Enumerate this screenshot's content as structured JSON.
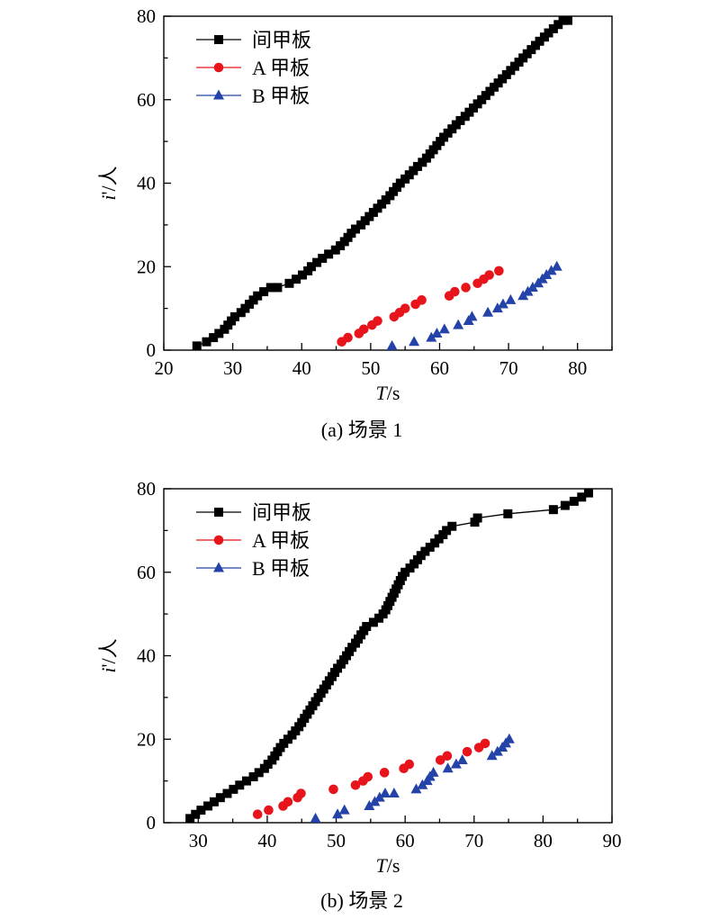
{
  "figure": {
    "caption_a": "(a) 场景 1",
    "caption_b": "(b) 场景 2"
  },
  "colors": {
    "series_mid": "#000000",
    "series_a": "#e8141c",
    "series_b": "#2443a8",
    "axis": "#000000"
  },
  "chart_data": [
    {
      "type": "scatter",
      "title": "",
      "xlabel": "T/s",
      "ylabel": "i'/人",
      "xlim": [
        20,
        85
      ],
      "ylim": [
        0,
        80
      ],
      "xticks": [
        20,
        30,
        40,
        50,
        60,
        70,
        80
      ],
      "yticks": [
        0,
        20,
        40,
        60,
        80
      ],
      "legend_position": "top-left",
      "series": [
        {
          "name": "间甲板",
          "marker": "square",
          "line": true,
          "color": "#000000",
          "points": [
            [
              24.8,
              1
            ],
            [
              26.2,
              2
            ],
            [
              27.2,
              3
            ],
            [
              28,
              4
            ],
            [
              28.8,
              5
            ],
            [
              29.3,
              6
            ],
            [
              29.8,
              7
            ],
            [
              30.3,
              8
            ],
            [
              31.2,
              9
            ],
            [
              31.8,
              10
            ],
            [
              32.4,
              11
            ],
            [
              33,
              12
            ],
            [
              33.6,
              13
            ],
            [
              34.5,
              14
            ],
            [
              35.5,
              15
            ],
            [
              36.5,
              15
            ],
            [
              38.2,
              16
            ],
            [
              39.2,
              17
            ],
            [
              40.1,
              18
            ],
            [
              40.9,
              19
            ],
            [
              41.4,
              20
            ],
            [
              42.2,
              21
            ],
            [
              43,
              22
            ],
            [
              43.9,
              23
            ],
            [
              44.9,
              24
            ],
            [
              45.6,
              25
            ],
            [
              46.2,
              26
            ],
            [
              46.7,
              27
            ],
            [
              47.2,
              28
            ],
            [
              47.8,
              29
            ],
            [
              48.6,
              30
            ],
            [
              49.2,
              31
            ],
            [
              49.8,
              32
            ],
            [
              50.4,
              33
            ],
            [
              51,
              34
            ],
            [
              51.6,
              35
            ],
            [
              52.2,
              36
            ],
            [
              52.8,
              37
            ],
            [
              53.3,
              38
            ],
            [
              53.8,
              39
            ],
            [
              54.3,
              40
            ],
            [
              55,
              41
            ],
            [
              55.6,
              42
            ],
            [
              56.2,
              43
            ],
            [
              56.8,
              44
            ],
            [
              57.5,
              45
            ],
            [
              58.1,
              46
            ],
            [
              58.6,
              47
            ],
            [
              59.1,
              48
            ],
            [
              59.6,
              49
            ],
            [
              60.1,
              50
            ],
            [
              60.6,
              51
            ],
            [
              61.2,
              52
            ],
            [
              61.8,
              53
            ],
            [
              62.4,
              54
            ],
            [
              63,
              55
            ],
            [
              63.7,
              56
            ],
            [
              64.3,
              57
            ],
            [
              64.9,
              58
            ],
            [
              65.5,
              59
            ],
            [
              66.1,
              60
            ],
            [
              66.7,
              61
            ],
            [
              67.3,
              62
            ],
            [
              67.9,
              63
            ],
            [
              68.5,
              64
            ],
            [
              69.1,
              65
            ],
            [
              69.7,
              66
            ],
            [
              70.3,
              67
            ],
            [
              70.9,
              68
            ],
            [
              71.5,
              69
            ],
            [
              72.1,
              70
            ],
            [
              72.7,
              71
            ],
            [
              73.3,
              72
            ],
            [
              73.9,
              73
            ],
            [
              74.5,
              74
            ],
            [
              75.2,
              75
            ],
            [
              75.8,
              76
            ],
            [
              76.5,
              77
            ],
            [
              77.2,
              78
            ],
            [
              77.9,
              79
            ],
            [
              78.6,
              79
            ]
          ]
        },
        {
          "name": "A 甲板",
          "marker": "circle",
          "line": false,
          "color": "#e8141c",
          "points": [
            [
              45.8,
              2
            ],
            [
              46.7,
              3
            ],
            [
              48.3,
              4
            ],
            [
              49,
              5
            ],
            [
              50.2,
              6
            ],
            [
              51,
              7
            ],
            [
              53.4,
              8
            ],
            [
              54.2,
              9
            ],
            [
              55,
              10
            ],
            [
              56.5,
              11
            ],
            [
              57.4,
              12
            ],
            [
              61.4,
              13
            ],
            [
              62.2,
              14
            ],
            [
              63.8,
              15
            ],
            [
              65.5,
              16
            ],
            [
              66.4,
              17
            ],
            [
              67.2,
              18
            ],
            [
              68.6,
              19
            ]
          ]
        },
        {
          "name": "B 甲板",
          "marker": "triangle",
          "line": false,
          "color": "#2443a8",
          "points": [
            [
              53.1,
              1
            ],
            [
              56.3,
              2
            ],
            [
              58.8,
              3
            ],
            [
              59.6,
              4
            ],
            [
              60.7,
              5
            ],
            [
              62.7,
              6
            ],
            [
              64.2,
              7
            ],
            [
              64.7,
              8
            ],
            [
              67,
              9
            ],
            [
              68.4,
              10
            ],
            [
              69.2,
              11
            ],
            [
              70.3,
              12
            ],
            [
              72.1,
              13
            ],
            [
              72.8,
              14
            ],
            [
              73.5,
              15
            ],
            [
              74.3,
              16
            ],
            [
              74.9,
              17
            ],
            [
              75.5,
              18
            ],
            [
              76.2,
              19
            ],
            [
              77,
              20
            ]
          ]
        }
      ]
    },
    {
      "type": "scatter",
      "title": "",
      "xlabel": "T/s",
      "ylabel": "i'/人",
      "xlim": [
        25,
        90
      ],
      "ylim": [
        0,
        80
      ],
      "xticks": [
        30,
        40,
        50,
        60,
        70,
        80,
        90
      ],
      "yticks": [
        0,
        20,
        40,
        60,
        80
      ],
      "legend_position": "top-left",
      "series": [
        {
          "name": "间甲板",
          "marker": "square",
          "line": true,
          "color": "#000000",
          "points": [
            [
              28.8,
              1
            ],
            [
              29.6,
              2
            ],
            [
              30.4,
              3
            ],
            [
              31.4,
              4
            ],
            [
              32.3,
              5
            ],
            [
              33.2,
              6
            ],
            [
              34.2,
              7
            ],
            [
              35.1,
              8
            ],
            [
              36,
              9
            ],
            [
              37,
              10
            ],
            [
              38,
              11
            ],
            [
              38.8,
              12
            ],
            [
              39.6,
              13
            ],
            [
              40.1,
              14
            ],
            [
              40.7,
              15
            ],
            [
              41.1,
              16
            ],
            [
              41.5,
              17
            ],
            [
              41.9,
              18
            ],
            [
              42.4,
              19
            ],
            [
              43,
              20
            ],
            [
              43.6,
              21
            ],
            [
              44.1,
              22
            ],
            [
              44.6,
              23
            ],
            [
              45,
              24
            ],
            [
              45.4,
              25
            ],
            [
              45.8,
              26
            ],
            [
              46.2,
              27
            ],
            [
              46.6,
              28
            ],
            [
              47,
              29
            ],
            [
              47.4,
              30
            ],
            [
              47.8,
              31
            ],
            [
              48.2,
              32
            ],
            [
              48.6,
              33
            ],
            [
              49,
              34
            ],
            [
              49.4,
              35
            ],
            [
              49.8,
              36
            ],
            [
              50.2,
              37
            ],
            [
              50.7,
              38
            ],
            [
              51.1,
              39
            ],
            [
              51.5,
              40
            ],
            [
              51.9,
              41
            ],
            [
              52.3,
              42
            ],
            [
              52.8,
              43
            ],
            [
              53.2,
              44
            ],
            [
              53.6,
              45
            ],
            [
              54,
              46
            ],
            [
              54.4,
              47
            ],
            [
              55.4,
              48
            ],
            [
              56.2,
              49
            ],
            [
              56.8,
              50
            ],
            [
              57.2,
              51
            ],
            [
              57.5,
              52
            ],
            [
              57.8,
              53
            ],
            [
              58.1,
              54
            ],
            [
              58.4,
              55
            ],
            [
              58.7,
              56
            ],
            [
              59,
              57
            ],
            [
              59.3,
              58
            ],
            [
              59.6,
              59
            ],
            [
              60,
              60
            ],
            [
              60.7,
              61
            ],
            [
              61.3,
              62
            ],
            [
              61.8,
              63
            ],
            [
              62.3,
              64
            ],
            [
              62.9,
              65
            ],
            [
              63.6,
              66
            ],
            [
              64.3,
              67
            ],
            [
              64.9,
              68
            ],
            [
              65.5,
              69
            ],
            [
              66,
              70
            ],
            [
              66.8,
              71
            ],
            [
              70.1,
              72
            ],
            [
              70.5,
              73
            ],
            [
              74.9,
              74
            ],
            [
              81.5,
              75
            ],
            [
              83.2,
              76
            ],
            [
              84.5,
              77
            ],
            [
              85.6,
              78
            ],
            [
              86.6,
              79
            ]
          ]
        },
        {
          "name": "A 甲板",
          "marker": "circle",
          "line": false,
          "color": "#e8141c",
          "points": [
            [
              38.6,
              2
            ],
            [
              40.2,
              3
            ],
            [
              42.3,
              4
            ],
            [
              43,
              5
            ],
            [
              44.4,
              6
            ],
            [
              44.9,
              7
            ],
            [
              49.6,
              8
            ],
            [
              52.8,
              9
            ],
            [
              53.9,
              10
            ],
            [
              54.6,
              11
            ],
            [
              57,
              12
            ],
            [
              59.8,
              13
            ],
            [
              60.6,
              14
            ],
            [
              65.1,
              15
            ],
            [
              66.1,
              16
            ],
            [
              69,
              17
            ],
            [
              70.7,
              18
            ],
            [
              71.6,
              19
            ]
          ]
        },
        {
          "name": "B 甲板",
          "marker": "triangle",
          "line": false,
          "color": "#2443a8",
          "points": [
            [
              47,
              1
            ],
            [
              50.2,
              2
            ],
            [
              51.2,
              3
            ],
            [
              54.8,
              4
            ],
            [
              55.6,
              5
            ],
            [
              56.3,
              6
            ],
            [
              57.1,
              7
            ],
            [
              58.4,
              7
            ],
            [
              61.6,
              8
            ],
            [
              62.5,
              9
            ],
            [
              63.2,
              10
            ],
            [
              63.6,
              11
            ],
            [
              64.1,
              12
            ],
            [
              66.2,
              13
            ],
            [
              67.4,
              14
            ],
            [
              68.3,
              15
            ],
            [
              72.6,
              16
            ],
            [
              73.4,
              17
            ],
            [
              74.1,
              18
            ],
            [
              74.6,
              19
            ],
            [
              75.1,
              20
            ]
          ]
        }
      ]
    }
  ]
}
